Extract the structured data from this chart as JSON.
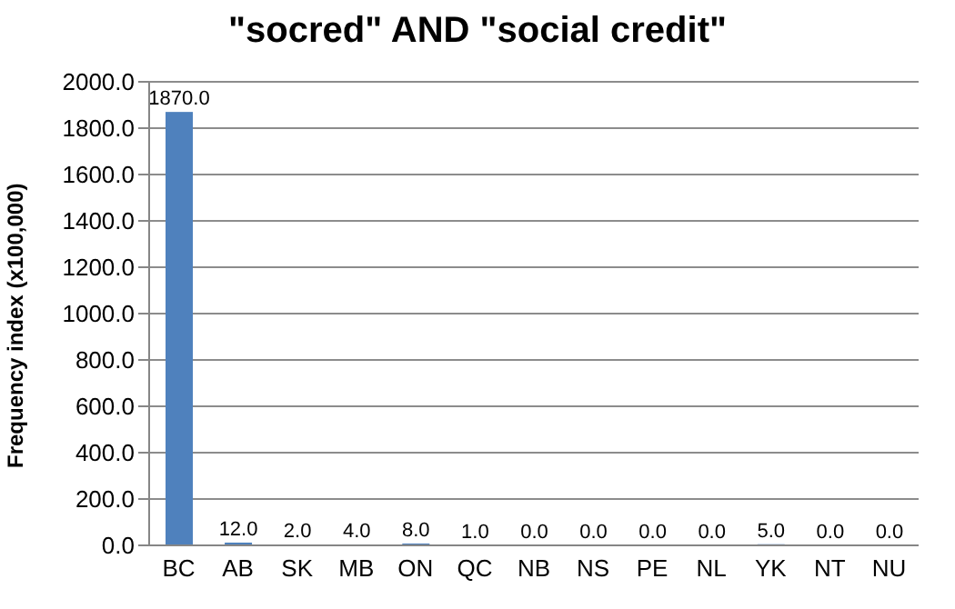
{
  "chart_data": {
    "type": "bar",
    "title": "\"socred\" AND \"social credit\"",
    "ylabel": "Frequency index (x100,000)",
    "categories": [
      "BC",
      "AB",
      "SK",
      "MB",
      "ON",
      "QC",
      "NB",
      "NS",
      "PE",
      "NL",
      "YK",
      "NT",
      "NU"
    ],
    "values": [
      1870,
      12,
      2,
      4,
      8,
      1,
      0,
      0,
      0,
      0,
      5,
      0,
      0
    ],
    "value_labels": [
      "1870.0",
      "12.0",
      "2.0",
      "4.0",
      "8.0",
      "1.0",
      "0.0",
      "0.0",
      "0.0",
      "0.0",
      "5.0",
      "0.0",
      "0.0"
    ],
    "color": "#4f81bd",
    "ylim": [
      0,
      2000
    ],
    "yticks": [
      {
        "value": 0,
        "label": "0.0"
      },
      {
        "value": 200,
        "label": "200.0"
      },
      {
        "value": 400,
        "label": "400.0"
      },
      {
        "value": 600,
        "label": "600.0"
      },
      {
        "value": 800,
        "label": "800.0"
      },
      {
        "value": 1000,
        "label": "1000.0"
      },
      {
        "value": 1200,
        "label": "1200.0"
      },
      {
        "value": 1400,
        "label": "1400.0"
      },
      {
        "value": 1600,
        "label": "1600.0"
      },
      {
        "value": 1800,
        "label": "1800.0"
      },
      {
        "value": 2000,
        "label": "2000.0"
      }
    ],
    "grid": "y"
  }
}
